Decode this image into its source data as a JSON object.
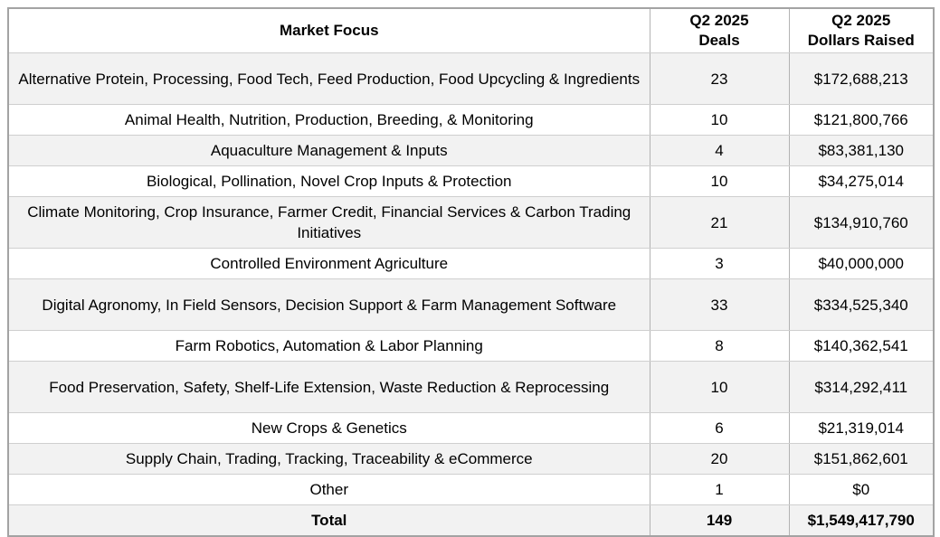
{
  "header": {
    "market_focus": "Market Focus",
    "deals_line1": "Q2 2025",
    "deals_line2": "Deals",
    "dollars_line1": "Q2 2025",
    "dollars_line2": "Dollars Raised"
  },
  "rows": [
    {
      "focus": "Alternative Protein, Processing, Food Tech, Feed Production, Food Upcycling & Ingredients",
      "deals": "23",
      "dollars": "$172,688,213"
    },
    {
      "focus": "Animal Health, Nutrition, Production, Breeding, & Monitoring",
      "deals": "10",
      "dollars": "$121,800,766"
    },
    {
      "focus": "Aquaculture Management & Inputs",
      "deals": "4",
      "dollars": "$83,381,130"
    },
    {
      "focus": "Biological, Pollination, Novel Crop Inputs & Protection",
      "deals": "10",
      "dollars": "$34,275,014"
    },
    {
      "focus": "Climate Monitoring, Crop Insurance, Farmer Credit, Financial Services & Carbon Trading Initiatives",
      "deals": "21",
      "dollars": "$134,910,760"
    },
    {
      "focus": "Controlled Environment Agriculture",
      "deals": "3",
      "dollars": "$40,000,000"
    },
    {
      "focus": "Digital Agronomy, In Field Sensors, Decision Support & Farm Management Software",
      "deals": "33",
      "dollars": "$334,525,340"
    },
    {
      "focus": "Farm Robotics, Automation & Labor Planning",
      "deals": "8",
      "dollars": "$140,362,541"
    },
    {
      "focus": "Food Preservation, Safety, Shelf-Life Extension, Waste Reduction & Reprocessing",
      "deals": "10",
      "dollars": "$314,292,411"
    },
    {
      "focus": "New Crops & Genetics",
      "deals": "6",
      "dollars": "$21,319,014"
    },
    {
      "focus": "Supply Chain, Trading, Tracking, Traceability & eCommerce",
      "deals": "20",
      "dollars": "$151,862,601"
    },
    {
      "focus": "Other",
      "deals": "1",
      "dollars": "$0"
    }
  ],
  "total_row": {
    "label": "Total",
    "deals": "149",
    "dollars": "$1,549,417,790"
  },
  "colors": {
    "stripe_row": "#f2f2f2",
    "plain_row": "#ffffff",
    "outer_border": "#a3a3a3",
    "inner_border_vertical": "#b3b3b3",
    "inner_border_horizontal": "#cfcfcf",
    "text": "#000000"
  },
  "chart_data": {
    "type": "table",
    "columns": [
      "Market Focus",
      "Q2 2025 Deals",
      "Q2 2025 Dollars Raised"
    ],
    "categories": [
      "Alternative Protein, Processing, Food Tech, Feed Production, Food Upcycling & Ingredients",
      "Animal Health, Nutrition, Production, Breeding, & Monitoring",
      "Aquaculture Management & Inputs",
      "Biological, Pollination, Novel Crop Inputs & Protection",
      "Climate Monitoring, Crop Insurance, Farmer Credit, Financial Services & Carbon Trading Initiatives",
      "Controlled Environment Agriculture",
      "Digital Agronomy, In Field Sensors, Decision Support & Farm Management Software",
      "Farm Robotics, Automation & Labor Planning",
      "Food Preservation, Safety, Shelf-Life Extension, Waste Reduction & Reprocessing",
      "New Crops & Genetics",
      "Supply Chain, Trading, Tracking, Traceability & eCommerce",
      "Other"
    ],
    "series": [
      {
        "name": "Q2 2025 Deals",
        "values": [
          23,
          10,
          4,
          10,
          21,
          3,
          33,
          8,
          10,
          6,
          20,
          1
        ]
      },
      {
        "name": "Q2 2025 Dollars Raised",
        "values": [
          172688213,
          121800766,
          83381130,
          34275014,
          134910760,
          40000000,
          334525340,
          140362541,
          314292411,
          21319014,
          151862601,
          0
        ]
      }
    ],
    "total": {
      "label": "Total",
      "deals": 149,
      "dollars_raised": 1549417790
    }
  }
}
